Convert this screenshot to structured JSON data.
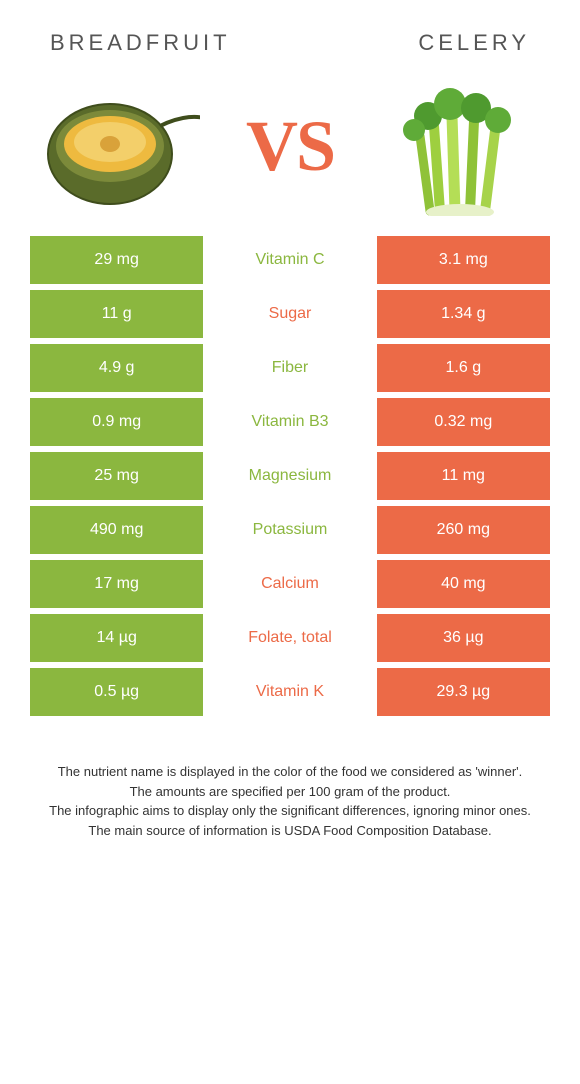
{
  "colors": {
    "left": "#8bb73f",
    "right": "#ec6a47",
    "text_default": "#555555",
    "footnote_text": "#333333",
    "background": "#ffffff"
  },
  "header": {
    "left_title": "BREADFRUIT",
    "right_title": "CELERY",
    "vs_text": "VS"
  },
  "rows": [
    {
      "left": "29 mg",
      "label": "Vitamin C",
      "right": "3.1 mg",
      "winner": "left"
    },
    {
      "left": "11 g",
      "label": "Sugar",
      "right": "1.34 g",
      "winner": "right"
    },
    {
      "left": "4.9 g",
      "label": "Fiber",
      "right": "1.6 g",
      "winner": "left"
    },
    {
      "left": "0.9 mg",
      "label": "Vitamin B3",
      "right": "0.32 mg",
      "winner": "left"
    },
    {
      "left": "25 mg",
      "label": "Magnesium",
      "right": "11 mg",
      "winner": "left"
    },
    {
      "left": "490 mg",
      "label": "Potassium",
      "right": "260 mg",
      "winner": "left"
    },
    {
      "left": "17 mg",
      "label": "Calcium",
      "right": "40 mg",
      "winner": "right"
    },
    {
      "left": "14 µg",
      "label": "Folate, total",
      "right": "36 µg",
      "winner": "right"
    },
    {
      "left": "0.5 µg",
      "label": "Vitamin K",
      "right": "29.3 µg",
      "winner": "right"
    }
  ],
  "footnotes": [
    "The nutrient name is displayed in the color of the food we considered as 'winner'.",
    "The amounts are specified per 100 gram of the product.",
    "The infographic aims to display only the significant differences, ignoring minor ones.",
    "The main source of information is USDA Food Composition Database."
  ]
}
